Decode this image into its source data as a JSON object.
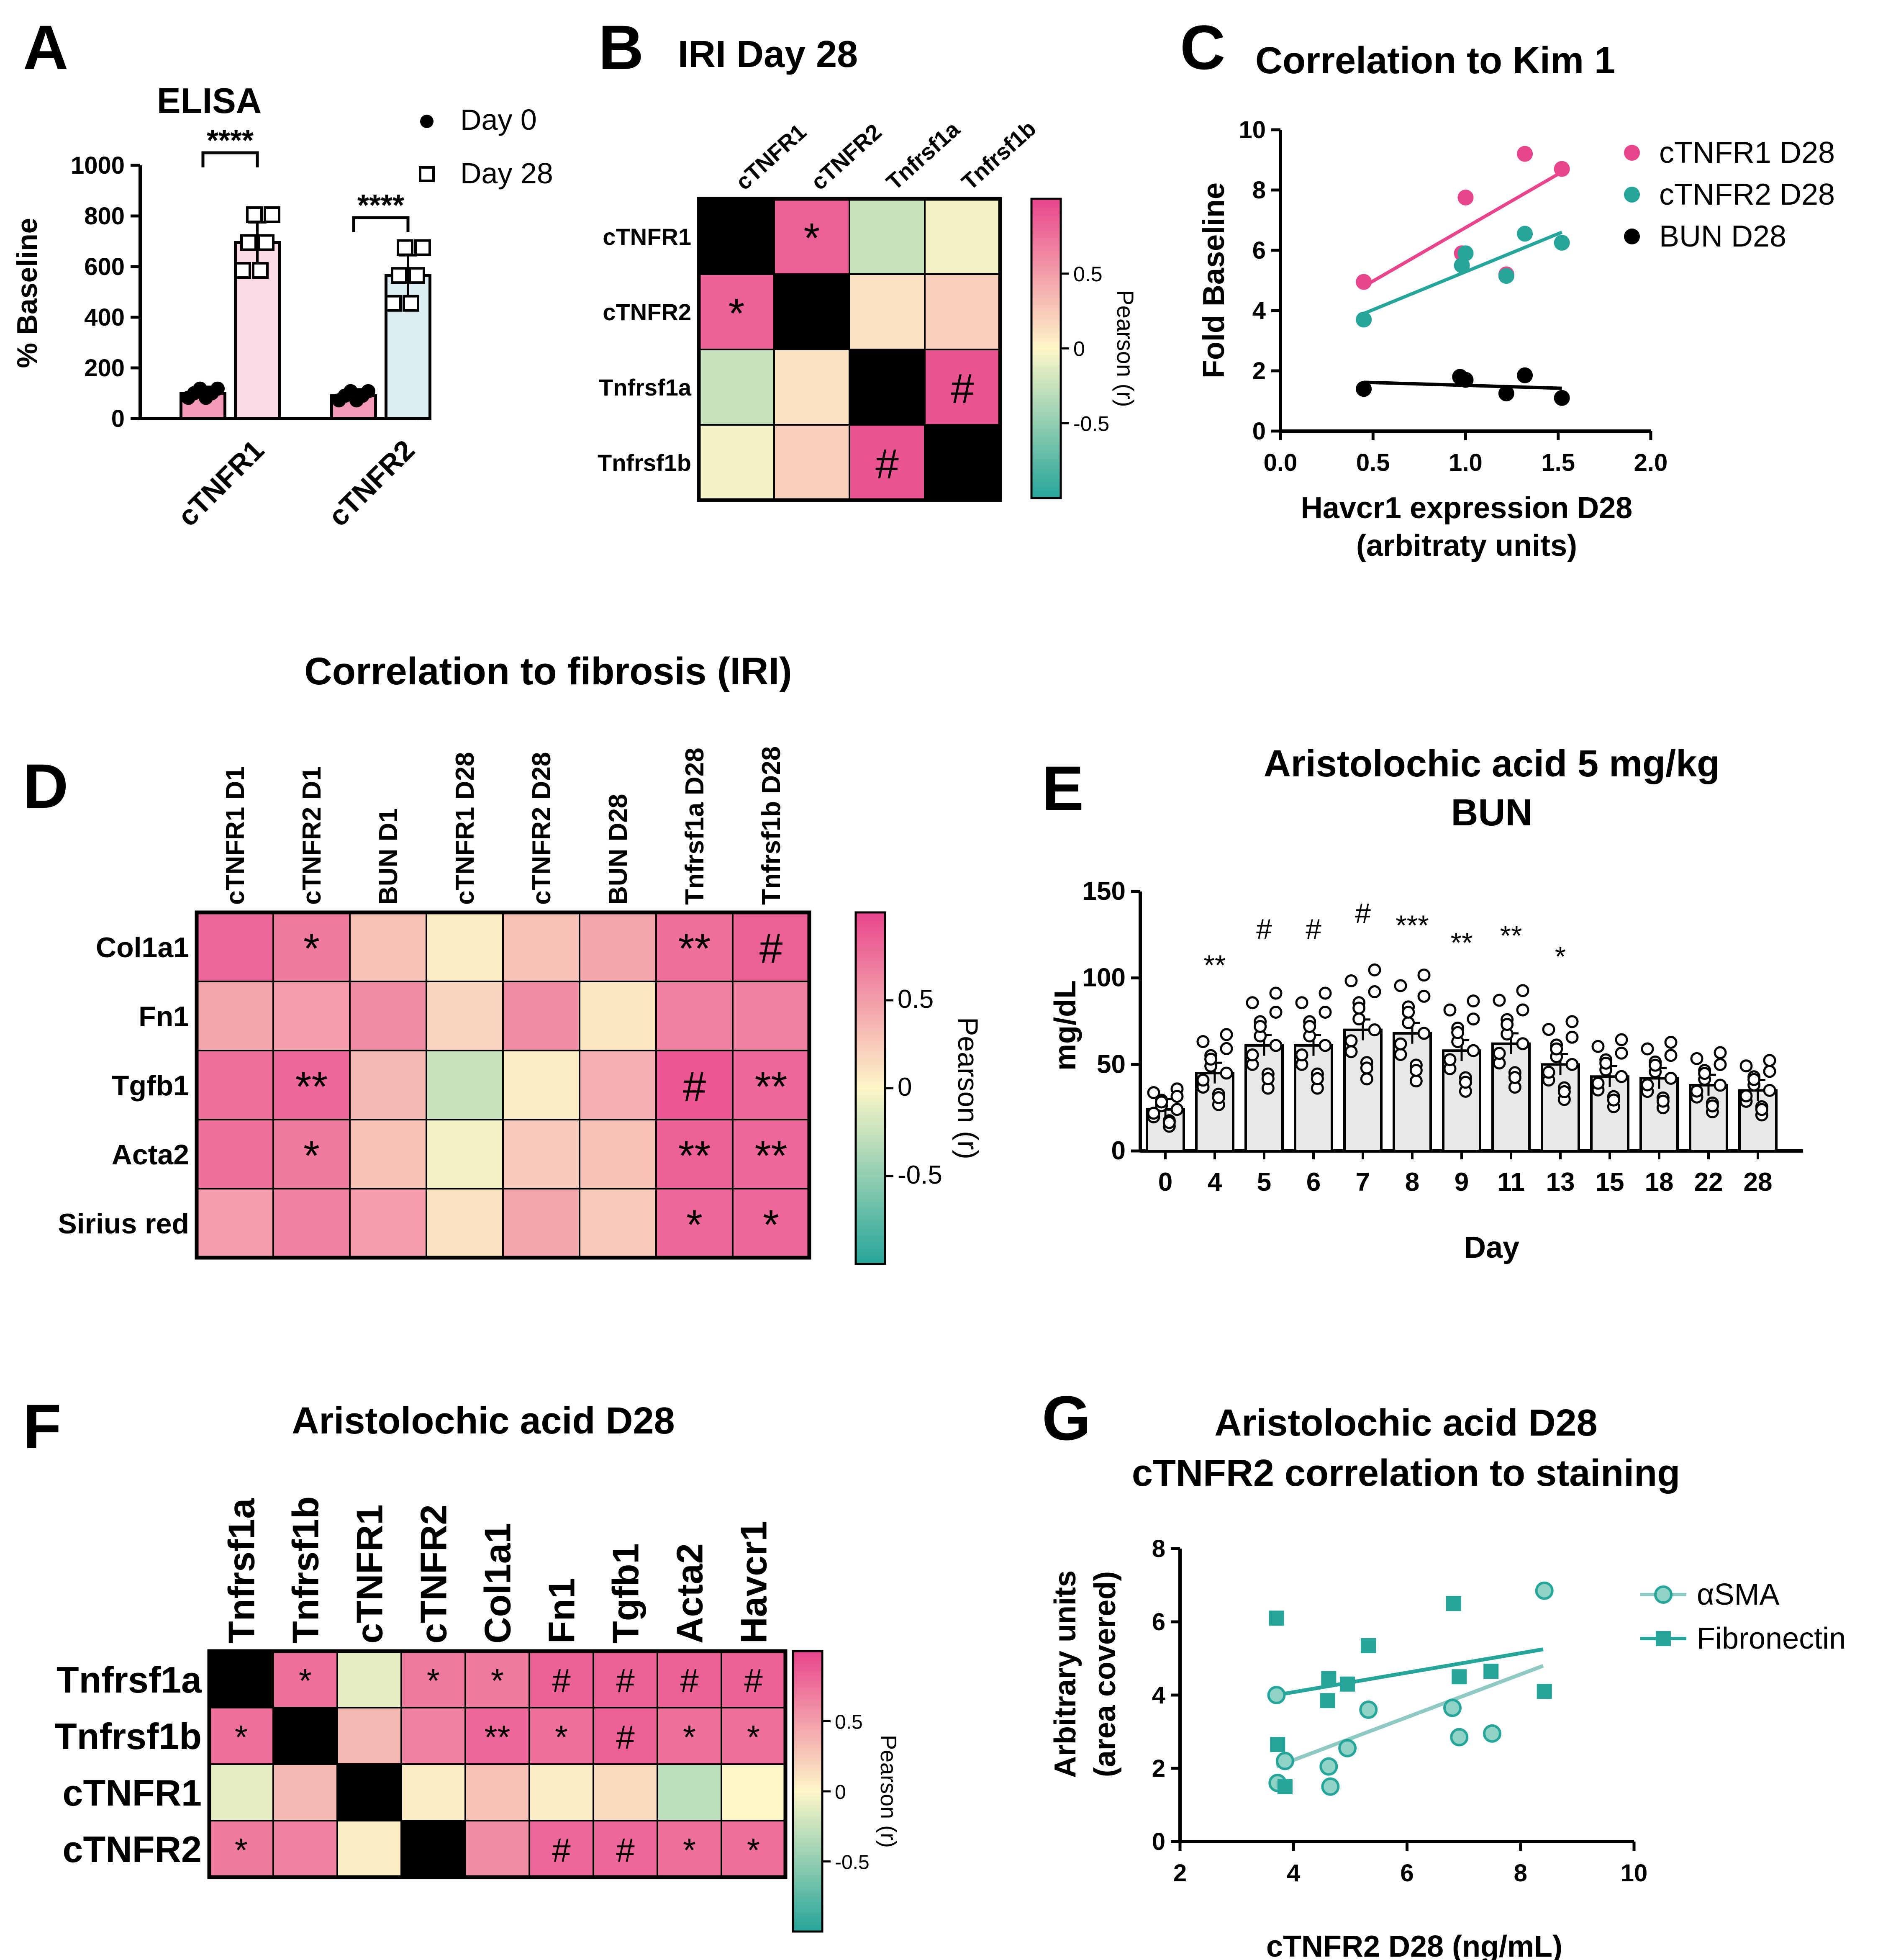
{
  "colors": {
    "pink": "#e8458c",
    "teal": "#26a59a",
    "black": "#000000",
    "light_teal": "#8fc9c4"
  },
  "panel_labels": {
    "a": "A",
    "b": "B",
    "c": "C",
    "d": "D",
    "e": "E",
    "f": "F",
    "g": "G"
  },
  "chart_data": [
    {
      "panel": "A",
      "type": "bar",
      "title": "ELISA",
      "ylabel": "% Baseline",
      "ylim": [
        0,
        1000
      ],
      "yticks": [
        "0",
        "200",
        "400",
        "600",
        "800",
        "1000"
      ],
      "categories": [
        "cTNFR1",
        "cTNFR2"
      ],
      "series": [
        {
          "name": "Day 0",
          "values": [
            100,
            90
          ]
        },
        {
          "name": "Day 28",
          "values": [
            695,
            565
          ]
        }
      ],
      "significance": [
        "****",
        "****"
      ]
    },
    {
      "panel": "B",
      "type": "heatmap",
      "title": "IRI Day 28",
      "columns": [
        "cTNFR1",
        "cTNFR2",
        "Tnfrsf1a",
        "Tnfrsf1b"
      ],
      "rows": [
        "cTNFR1",
        "cTNFR2",
        "Tnfrsf1a",
        "Tnfrsf1b"
      ],
      "values": [
        [
          1.0,
          0.85,
          -0.25,
          -0.05
        ],
        [
          0.85,
          1.0,
          0.1,
          0.22
        ],
        [
          -0.25,
          0.1,
          1.0,
          0.92
        ],
        [
          -0.05,
          0.22,
          0.92,
          1.0
        ]
      ],
      "marks": [
        [
          "",
          "*",
          "",
          ""
        ],
        [
          "*",
          "",
          "",
          ""
        ],
        [
          "",
          "",
          "",
          "#"
        ],
        [
          "",
          "",
          "#",
          ""
        ]
      ],
      "colorbar_label": "Pearson (r)",
      "colorbar_ticks": [
        "0.5",
        "0",
        "-0.5"
      ]
    },
    {
      "panel": "C",
      "type": "scatter",
      "title": "Correlation to Kim 1",
      "xlabel": "Havcr1 expression D28",
      "xlabel2": "(arbitraty units)",
      "ylabel": "Fold Baseline",
      "xlim": [
        0,
        2
      ],
      "ylim": [
        0,
        10
      ],
      "xticks": [
        "0.0",
        "0.5",
        "1.0",
        "1.5",
        "2.0"
      ],
      "yticks": [
        "0",
        "2",
        "4",
        "6",
        "8",
        "10"
      ],
      "series": [
        {
          "name": "cTNFR1 D28",
          "x": [
            0.45,
            0.98,
            1.0,
            1.22,
            1.32,
            1.52
          ],
          "y": [
            4.95,
            5.9,
            7.75,
            5.2,
            9.2,
            8.7
          ],
          "fit": [
            [
              0.45,
              4.8
            ],
            [
              1.52,
              8.6
            ]
          ]
        },
        {
          "name": "cTNFR2 D28",
          "x": [
            0.45,
            0.98,
            1.0,
            1.22,
            1.32,
            1.52
          ],
          "y": [
            3.7,
            5.5,
            5.9,
            5.15,
            6.55,
            6.25
          ],
          "fit": [
            [
              0.45,
              3.9
            ],
            [
              1.52,
              6.6
            ]
          ]
        },
        {
          "name": "BUN D28",
          "x": [
            0.45,
            0.97,
            1.0,
            1.22,
            1.32,
            1.52
          ],
          "y": [
            1.4,
            1.8,
            1.7,
            1.25,
            1.85,
            1.1
          ],
          "fit": [
            [
              0.45,
              1.62
            ],
            [
              1.52,
              1.42
            ]
          ]
        }
      ]
    },
    {
      "panel": "D",
      "type": "heatmap",
      "title": "Correlation to fibrosis (IRI)",
      "columns": [
        "cTNFR1 D1",
        "cTNFR2 D1",
        "BUN D1",
        "cTNFR1 D28",
        "cTNFR2 D28",
        "BUN D28",
        "Tnfrsf1a D28",
        "Tnfrsf1b D28"
      ],
      "rows": [
        "Col1a1",
        "Fn1",
        "Tgfb1",
        "Acta2",
        "Sirius red"
      ],
      "values": [
        [
          0.8,
          0.7,
          0.3,
          0.05,
          0.3,
          0.45,
          0.75,
          0.85
        ],
        [
          0.45,
          0.5,
          0.6,
          0.2,
          0.6,
          0.08,
          0.65,
          0.65
        ],
        [
          0.75,
          0.8,
          0.35,
          -0.25,
          0.05,
          0.4,
          0.9,
          0.8
        ],
        [
          0.75,
          0.7,
          0.3,
          -0.05,
          0.25,
          0.3,
          0.85,
          0.8
        ],
        [
          0.5,
          0.65,
          0.5,
          0.1,
          0.45,
          0.25,
          0.8,
          0.8
        ]
      ],
      "marks": [
        [
          "",
          "*",
          "",
          "",
          "",
          "",
          "**",
          "#"
        ],
        [
          "",
          "",
          "",
          "",
          "",
          "",
          "",
          ""
        ],
        [
          "",
          "**",
          "",
          "",
          "",
          "",
          "#",
          "**"
        ],
        [
          "",
          "*",
          "",
          "",
          "",
          "",
          "**",
          "**"
        ],
        [
          "",
          "",
          "",
          "",
          "",
          "",
          "*",
          "*"
        ]
      ],
      "colorbar_label": "Pearson (r)",
      "colorbar_ticks": [
        "0.5",
        "0",
        "-0.5"
      ]
    },
    {
      "panel": "E",
      "type": "bar",
      "title": "Aristolochic acid 5 mg/kg",
      "subtitle": "BUN",
      "xlabel": "Day",
      "ylabel": "mg/dL",
      "ylim": [
        0,
        150
      ],
      "yticks": [
        "0",
        "50",
        "100",
        "150"
      ],
      "categories": [
        "0",
        "4",
        "5",
        "6",
        "7",
        "8",
        "9",
        "11",
        "13",
        "15",
        "18",
        "22",
        "28"
      ],
      "values": [
        24,
        45,
        61,
        61,
        70,
        68,
        58,
        62,
        50,
        43,
        42,
        38,
        35
      ],
      "significance": [
        "",
        "**",
        "#",
        "#",
        "#",
        "***",
        "**",
        "**",
        "*",
        "",
        "",
        "",
        ""
      ]
    },
    {
      "panel": "F",
      "type": "heatmap",
      "title": "Aristolochic acid D28",
      "columns": [
        "Tnfrsf1a",
        "Tnfrsf1b",
        "cTNFR1",
        "cTNFR2",
        "Col1a1",
        "Fn1",
        "Tgfb1",
        "Acta2",
        "Havcr1"
      ],
      "rows": [
        "Tnfrsf1a",
        "Tnfrsf1b",
        "cTNFR1",
        "cTNFR2"
      ],
      "values": [
        [
          1.0,
          0.75,
          -0.1,
          0.7,
          0.7,
          0.85,
          0.85,
          0.85,
          0.85
        ],
        [
          0.75,
          1.0,
          0.35,
          0.65,
          0.8,
          0.75,
          0.85,
          0.75,
          0.75
        ],
        [
          -0.1,
          0.35,
          1.0,
          0.05,
          0.3,
          0.05,
          0.15,
          -0.3,
          0.0
        ],
        [
          0.7,
          0.65,
          0.05,
          1.0,
          0.6,
          0.8,
          0.8,
          0.75,
          0.75
        ]
      ],
      "marks": [
        [
          "",
          "*",
          "",
          "*",
          "*",
          "#",
          "#",
          "#",
          "#"
        ],
        [
          "*",
          "",
          "",
          "",
          "**",
          "*",
          "#",
          "*",
          "*"
        ],
        [
          "",
          "",
          "",
          "",
          "",
          "",
          "",
          "",
          ""
        ],
        [
          "*",
          "",
          "",
          "",
          "",
          "#",
          "#",
          "*",
          "*"
        ]
      ],
      "colorbar_label": "Pearson (r)",
      "colorbar_ticks": [
        "0.5",
        "0",
        "-0.5"
      ]
    },
    {
      "panel": "G",
      "type": "scatter",
      "title": "Aristolochic acid D28",
      "subtitle": "cTNFR2 correlation to staining",
      "xlabel": "cTNFR2 D28 (ng/mL)",
      "ylabel": "Arbitrary units",
      "ylabel2": "(area covered)",
      "xlim": [
        2,
        10
      ],
      "ylim": [
        0,
        8
      ],
      "xticks": [
        "2",
        "4",
        "6",
        "8",
        "10"
      ],
      "yticks": [
        "0",
        "2",
        "4",
        "6",
        "8"
      ],
      "series": [
        {
          "name": "αSMA",
          "x": [
            3.7,
            3.72,
            3.85,
            4.62,
            4.65,
            4.95,
            5.32,
            6.8,
            6.92,
            7.5,
            8.42
          ],
          "y": [
            4.0,
            1.6,
            2.2,
            2.05,
            1.5,
            2.55,
            3.6,
            3.65,
            2.85,
            2.95,
            6.85
          ],
          "fit": [
            [
              3.7,
              2.05
            ],
            [
              8.4,
              4.8
            ]
          ]
        },
        {
          "name": "Fibronectin",
          "x": [
            3.7,
            3.72,
            3.85,
            4.6,
            4.62,
            4.95,
            5.32,
            6.82,
            6.92,
            7.48,
            8.42
          ],
          "y": [
            6.1,
            2.65,
            1.5,
            3.85,
            4.45,
            4.3,
            5.35,
            6.5,
            4.5,
            4.65,
            4.1
          ],
          "fit": [
            [
              3.7,
              4.0
            ],
            [
              8.4,
              5.25
            ]
          ]
        }
      ]
    }
  ]
}
